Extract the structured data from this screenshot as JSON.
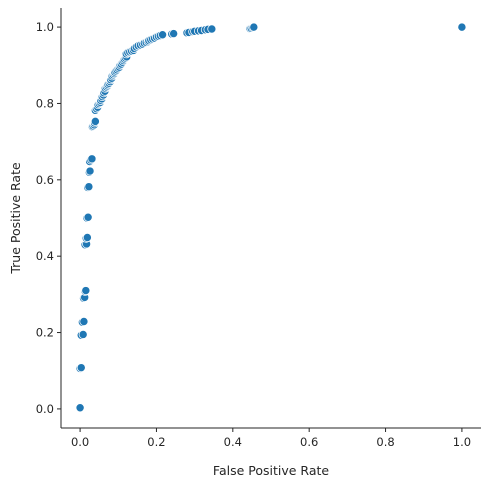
{
  "chart_data": {
    "type": "scatter",
    "title": "",
    "xlabel": "False Positive Rate",
    "ylabel": "True Positive Rate",
    "xlim": [
      -0.05,
      1.05
    ],
    "ylim": [
      -0.05,
      1.05
    ],
    "xticks": [
      0.0,
      0.2,
      0.4,
      0.6,
      0.8,
      1.0
    ],
    "yticks": [
      0.0,
      0.2,
      0.4,
      0.6,
      0.8,
      1.0
    ],
    "tick_labels_x": [
      "0.0",
      "0.2",
      "0.4",
      "0.6",
      "0.8",
      "1.0"
    ],
    "tick_labels_y": [
      "0.0",
      "0.2",
      "0.4",
      "0.6",
      "0.8",
      "1.0"
    ],
    "grid": false,
    "marker_color": "#1f77b4",
    "marker_edge": "#ffffff",
    "series": [
      {
        "points": [
          [
            0.0,
            0.003
          ],
          [
            0.0,
            0.106
          ],
          [
            0.003,
            0.108
          ],
          [
            0.003,
            0.193
          ],
          [
            0.008,
            0.195
          ],
          [
            0.006,
            0.227
          ],
          [
            0.01,
            0.229
          ],
          [
            0.009,
            0.29
          ],
          [
            0.012,
            0.292
          ],
          [
            0.013,
            0.308
          ],
          [
            0.015,
            0.31
          ],
          [
            0.013,
            0.43
          ],
          [
            0.017,
            0.432
          ],
          [
            0.016,
            0.447
          ],
          [
            0.019,
            0.449
          ],
          [
            0.018,
            0.5
          ],
          [
            0.021,
            0.502
          ],
          [
            0.02,
            0.58
          ],
          [
            0.023,
            0.582
          ],
          [
            0.024,
            0.62
          ],
          [
            0.026,
            0.623
          ],
          [
            0.025,
            0.648
          ],
          [
            0.028,
            0.652
          ],
          [
            0.031,
            0.655
          ],
          [
            0.032,
            0.739
          ],
          [
            0.034,
            0.741
          ],
          [
            0.037,
            0.744
          ],
          [
            0.038,
            0.749
          ],
          [
            0.04,
            0.753
          ],
          [
            0.04,
            0.782
          ],
          [
            0.043,
            0.786
          ],
          [
            0.046,
            0.79
          ],
          [
            0.047,
            0.797
          ],
          [
            0.05,
            0.8
          ],
          [
            0.053,
            0.803
          ],
          [
            0.054,
            0.808
          ],
          [
            0.057,
            0.812
          ],
          [
            0.058,
            0.818
          ],
          [
            0.061,
            0.822
          ],
          [
            0.062,
            0.828
          ],
          [
            0.065,
            0.832
          ],
          [
            0.066,
            0.84
          ],
          [
            0.069,
            0.843
          ],
          [
            0.072,
            0.846
          ],
          [
            0.073,
            0.85
          ],
          [
            0.076,
            0.853
          ],
          [
            0.079,
            0.857
          ],
          [
            0.08,
            0.862
          ],
          [
            0.083,
            0.866
          ],
          [
            0.084,
            0.872
          ],
          [
            0.087,
            0.875
          ],
          [
            0.09,
            0.878
          ],
          [
            0.091,
            0.882
          ],
          [
            0.094,
            0.885
          ],
          [
            0.097,
            0.888
          ],
          [
            0.1,
            0.892
          ],
          [
            0.103,
            0.895
          ],
          [
            0.105,
            0.9
          ],
          [
            0.108,
            0.903
          ],
          [
            0.111,
            0.908
          ],
          [
            0.114,
            0.912
          ],
          [
            0.116,
            0.916
          ],
          [
            0.119,
            0.919
          ],
          [
            0.122,
            0.922
          ],
          [
            0.121,
            0.93
          ],
          [
            0.125,
            0.933
          ],
          [
            0.13,
            0.935
          ],
          [
            0.135,
            0.937
          ],
          [
            0.14,
            0.939
          ],
          [
            0.142,
            0.944
          ],
          [
            0.147,
            0.948
          ],
          [
            0.152,
            0.951
          ],
          [
            0.158,
            0.953
          ],
          [
            0.164,
            0.955
          ],
          [
            0.168,
            0.958
          ],
          [
            0.173,
            0.96
          ],
          [
            0.178,
            0.962
          ],
          [
            0.18,
            0.965
          ],
          [
            0.185,
            0.967
          ],
          [
            0.19,
            0.969
          ],
          [
            0.195,
            0.971
          ],
          [
            0.2,
            0.974
          ],
          [
            0.205,
            0.976
          ],
          [
            0.21,
            0.978
          ],
          [
            0.216,
            0.98
          ],
          [
            0.24,
            0.982
          ],
          [
            0.245,
            0.983
          ],
          [
            0.28,
            0.985
          ],
          [
            0.285,
            0.986
          ],
          [
            0.295,
            0.988
          ],
          [
            0.3,
            0.989
          ],
          [
            0.31,
            0.99
          ],
          [
            0.318,
            0.991
          ],
          [
            0.328,
            0.993
          ],
          [
            0.335,
            0.994
          ],
          [
            0.345,
            0.995
          ],
          [
            0.445,
            0.996
          ],
          [
            0.448,
            0.997
          ],
          [
            0.452,
            0.999
          ],
          [
            0.455,
            1.0
          ],
          [
            1.0,
            1.0
          ]
        ]
      }
    ]
  }
}
